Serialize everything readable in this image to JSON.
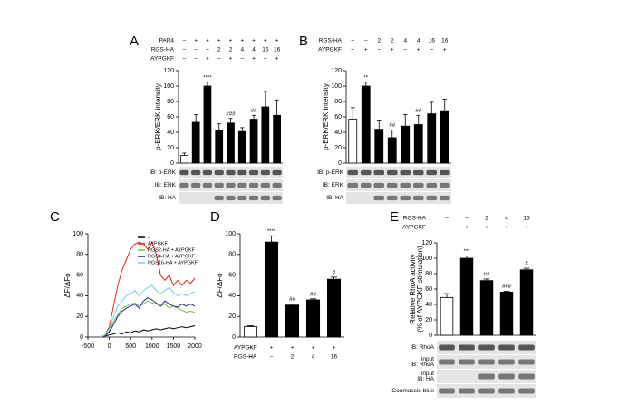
{
  "chart_data": [
    {
      "type": "bar",
      "panel": "A",
      "ylabel": "p-ERK/ERK intensity",
      "ylim": [
        0,
        120
      ],
      "yticks": [
        0,
        20,
        40,
        60,
        80,
        100,
        120
      ],
      "values": [
        10,
        53,
        100,
        43,
        52,
        41,
        57,
        73,
        62
      ],
      "errors": [
        3,
        10,
        5,
        8,
        6,
        5,
        5,
        20,
        20
      ],
      "colors": [
        "#ffffff",
        "#000000",
        "#000000",
        "#000000",
        "#000000",
        "#000000",
        "#000000",
        "#000000",
        "#000000"
      ],
      "annotations": [
        null,
        null,
        "****",
        null,
        "###",
        null,
        "##",
        null,
        null
      ],
      "conditions": [
        {
          "label": "PAR4",
          "values": [
            "–",
            "+",
            "+",
            "+",
            "+",
            "+",
            "+",
            "+",
            "+"
          ]
        },
        {
          "label": "RGS-HA",
          "values": [
            "–",
            "–",
            "–",
            "2",
            "2",
            "4",
            "4",
            "16",
            "16"
          ]
        },
        {
          "label": "AYPGKF",
          "values": [
            "–",
            "–",
            "+",
            "–",
            "+",
            "–",
            "+",
            "–",
            "+"
          ]
        }
      ],
      "blots": [
        [
          "IB: p-ERK"
        ],
        [
          "IB: ERK"
        ],
        [
          "IB: HA"
        ]
      ]
    },
    {
      "type": "bar",
      "panel": "B",
      "ylabel": "p-ERK/ERK intensity",
      "ylim": [
        0,
        120
      ],
      "yticks": [
        0,
        20,
        40,
        60,
        80,
        100,
        120
      ],
      "values": [
        57,
        100,
        44,
        33,
        48,
        50,
        64,
        68
      ],
      "errors": [
        15,
        5,
        12,
        10,
        15,
        12,
        15,
        15
      ],
      "colors": [
        "#ffffff",
        "#000000",
        "#000000",
        "#000000",
        "#000000",
        "#000000",
        "#000000",
        "#000000"
      ],
      "annotations": [
        null,
        "**",
        null,
        "##",
        null,
        "##",
        null,
        null
      ],
      "conditions": [
        {
          "label": "RGS-HA",
          "values": [
            "–",
            "–",
            "2",
            "2",
            "4",
            "4",
            "16",
            "16"
          ]
        },
        {
          "label": "AYPGKF",
          "values": [
            "–",
            "+",
            "–",
            "+",
            "–",
            "+",
            "–",
            "+"
          ]
        }
      ],
      "blots": [
        [
          "IB: p-ERK"
        ],
        [
          "IB: ERK"
        ],
        [
          "IB: HA"
        ]
      ]
    },
    {
      "type": "line",
      "panel": "C",
      "ylabel": "ΔF/ΔFo",
      "xlim": [
        -500,
        2000
      ],
      "xticks": [
        -500,
        0,
        500,
        1000,
        1500,
        2000
      ],
      "ylim": [
        0,
        100
      ],
      "yticks": [
        0,
        20,
        40,
        60,
        80,
        100
      ],
      "x": [
        -200,
        -100,
        0,
        100,
        200,
        300,
        400,
        500,
        600,
        700,
        800,
        900,
        1000,
        1100,
        1200,
        1300,
        1400,
        1500,
        1600,
        1700,
        1800,
        1900,
        2000
      ],
      "series": [
        {
          "name": "–",
          "color": "#000000",
          "values": [
            0,
            1,
            2,
            3,
            4,
            3,
            5,
            4,
            6,
            5,
            7,
            6,
            7,
            8,
            7,
            8,
            9,
            8,
            9,
            10,
            9,
            10,
            11
          ]
        },
        {
          "name": "AYPGKF",
          "color": "#e8201c",
          "values": [
            0,
            2,
            10,
            30,
            50,
            65,
            75,
            85,
            90,
            92,
            90,
            85,
            92,
            80,
            60,
            55,
            60,
            50,
            55,
            50,
            55,
            52,
            57
          ]
        },
        {
          "name": "RGS2-HA + AYPGKF",
          "color": "#7cc242",
          "values": [
            0,
            2,
            6,
            15,
            22,
            28,
            30,
            32,
            33,
            30,
            32,
            35,
            33,
            32,
            30,
            32,
            28,
            30,
            28,
            26,
            24,
            25,
            24
          ]
        },
        {
          "name": "RGS4-HA + AYPGKF",
          "color": "#1c2a8c",
          "values": [
            0,
            1,
            5,
            12,
            20,
            25,
            28,
            30,
            32,
            28,
            35,
            38,
            36,
            33,
            30,
            35,
            32,
            30,
            29,
            32,
            30,
            32,
            30
          ]
        },
        {
          "name": "RGS16-HA + AYPGKF",
          "color": "#6fd3e0",
          "values": [
            0,
            2,
            8,
            20,
            30,
            35,
            40,
            42,
            45,
            40,
            45,
            48,
            50,
            45,
            42,
            45,
            48,
            43,
            40,
            42,
            40,
            42,
            44
          ]
        }
      ]
    },
    {
      "type": "bar",
      "panel": "D",
      "ylabel": "ΔF/ΔFo",
      "ylim": [
        0,
        100
      ],
      "yticks": [
        0,
        20,
        40,
        60,
        80,
        100
      ],
      "values": [
        10,
        92,
        31,
        36,
        56
      ],
      "errors": [
        1,
        6,
        1,
        1,
        2
      ],
      "colors": [
        "#ffffff",
        "#000000",
        "#000000",
        "#000000",
        "#000000"
      ],
      "annotations": [
        null,
        "****",
        "##",
        "##",
        "#"
      ],
      "conditions": [
        {
          "label": "AYPGKF",
          "values": [
            "–",
            "+",
            "+",
            "+",
            "+"
          ]
        },
        {
          "label": "RGS-HA",
          "values": [
            "–",
            "–",
            "2",
            "4",
            "16"
          ]
        }
      ]
    },
    {
      "type": "bar",
      "panel": "E",
      "ylabel": [
        "Relative RhoA activity",
        "(% of AYPGKF stimulation)"
      ],
      "ylim": [
        0,
        120
      ],
      "yticks": [
        0,
        20,
        40,
        60,
        80,
        100,
        120
      ],
      "values": [
        49,
        100,
        71,
        56,
        85
      ],
      "errors": [
        5,
        3,
        2,
        1,
        2
      ],
      "colors": [
        "#ffffff",
        "#000000",
        "#000000",
        "#000000",
        "#000000"
      ],
      "annotations": [
        null,
        "***",
        "##",
        "###",
        "#"
      ],
      "conditions": [
        {
          "label": "RGS-HA",
          "values": [
            "–",
            "–",
            "2",
            "4",
            "16"
          ]
        },
        {
          "label": "AYPGKF",
          "values": [
            "–",
            "+",
            "+",
            "+",
            "+"
          ]
        }
      ],
      "blots": [
        [
          "IB: RhoA"
        ],
        [
          "input",
          "IB: RhoA"
        ],
        [
          "input",
          "IB: HA"
        ],
        [
          "Coomassie blue"
        ]
      ]
    }
  ]
}
